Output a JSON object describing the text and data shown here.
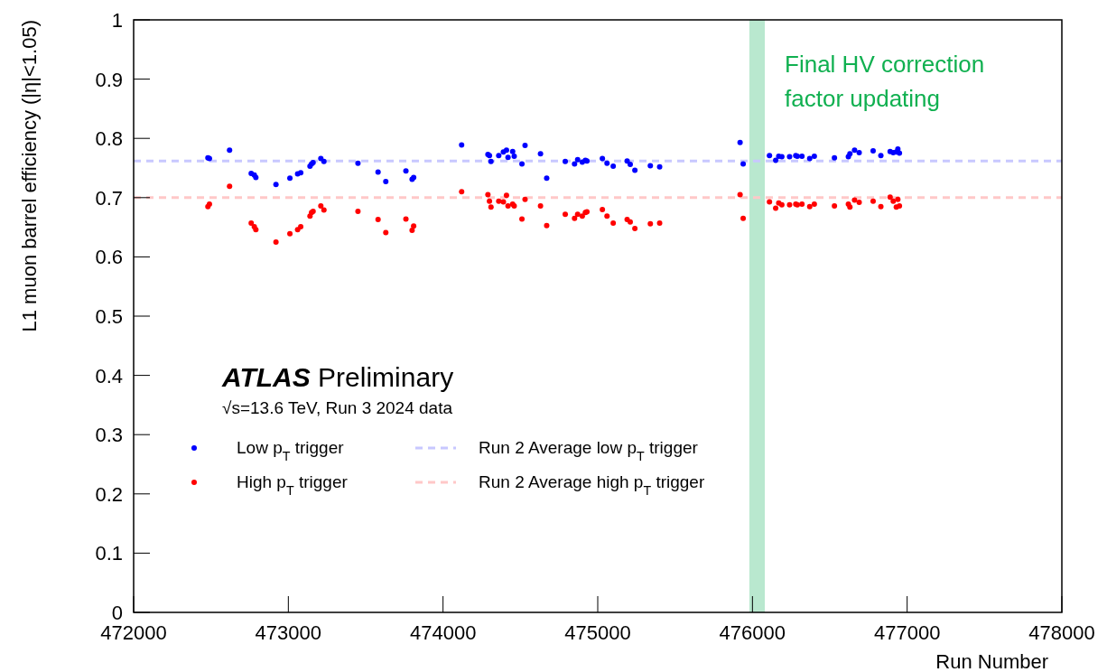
{
  "chart_data": {
    "type": "scatter",
    "xlabel": "Run Number",
    "ylabel": "L1 muon barrel efficiency (|η|<1.05)",
    "x": [
      472480,
      472490,
      472620,
      472760,
      472780,
      472790,
      472920,
      473010,
      473060,
      473080,
      473140,
      473150,
      473160,
      473210,
      473230,
      473450,
      473580,
      473630,
      473760,
      473800,
      473810,
      474120,
      474290,
      474300,
      474310,
      474360,
      474390,
      474410,
      474420,
      474450,
      474460,
      474510,
      474530,
      474630,
      474670,
      474790,
      474850,
      474870,
      474900,
      474920,
      474930,
      475030,
      475060,
      475100,
      475190,
      475210,
      475240,
      475340,
      475400,
      475920,
      475940,
      476110,
      476150,
      476170,
      476190,
      476240,
      476280,
      476290,
      476320,
      476370,
      476400,
      476530,
      476620,
      476630,
      476660,
      476690,
      476780,
      476830,
      476890,
      476910,
      476930,
      476940,
      476950
    ],
    "series": [
      {
        "name": "Low p$_{T}$ trigger",
        "color": "#0000ff",
        "values": [
          0.767,
          0.766,
          0.78,
          0.741,
          0.738,
          0.734,
          0.722,
          0.733,
          0.74,
          0.742,
          0.753,
          0.757,
          0.759,
          0.766,
          0.761,
          0.758,
          0.743,
          0.727,
          0.745,
          0.731,
          0.734,
          0.789,
          0.773,
          0.771,
          0.761,
          0.771,
          0.777,
          0.78,
          0.768,
          0.778,
          0.77,
          0.757,
          0.788,
          0.774,
          0.733,
          0.761,
          0.757,
          0.764,
          0.76,
          0.763,
          0.762,
          0.766,
          0.758,
          0.753,
          0.762,
          0.756,
          0.746,
          0.754,
          0.752,
          0.793,
          0.757,
          0.771,
          0.763,
          0.77,
          0.769,
          0.769,
          0.771,
          0.77,
          0.77,
          0.766,
          0.77,
          0.767,
          0.769,
          0.774,
          0.78,
          0.776,
          0.779,
          0.771,
          0.778,
          0.776,
          0.777,
          0.782,
          0.775
        ]
      },
      {
        "name": "High p$_{T}$ trigger",
        "color": "#ff0000",
        "values": [
          0.685,
          0.689,
          0.719,
          0.657,
          0.651,
          0.646,
          0.625,
          0.639,
          0.646,
          0.651,
          0.669,
          0.675,
          0.677,
          0.686,
          0.679,
          0.677,
          0.663,
          0.641,
          0.664,
          0.645,
          0.652,
          0.71,
          0.705,
          0.694,
          0.684,
          0.694,
          0.693,
          0.704,
          0.686,
          0.689,
          0.686,
          0.664,
          0.697,
          0.686,
          0.653,
          0.672,
          0.665,
          0.672,
          0.669,
          0.675,
          0.676,
          0.68,
          0.669,
          0.657,
          0.663,
          0.659,
          0.648,
          0.656,
          0.657,
          0.705,
          0.665,
          0.693,
          0.682,
          0.691,
          0.688,
          0.688,
          0.689,
          0.688,
          0.689,
          0.685,
          0.689,
          0.686,
          0.689,
          0.684,
          0.696,
          0.692,
          0.694,
          0.685,
          0.701,
          0.694,
          0.684,
          0.697,
          0.686
        ]
      }
    ],
    "xlim": [
      472000,
      478000
    ],
    "xticks": [
      472000,
      473000,
      474000,
      475000,
      476000,
      477000,
      478000
    ],
    "ylim": [
      0,
      1
    ],
    "yticks": [
      0,
      0.1,
      0.2,
      0.3,
      0.4,
      0.5,
      0.6,
      0.7,
      0.8,
      0.9,
      1
    ],
    "ref_lines": [
      {
        "axis": "y",
        "value": 0.762,
        "label": "Run 2 Average low p$_{T}$ trigger",
        "color": "#c8c8ff",
        "line_style": "dashed"
      },
      {
        "axis": "y",
        "value": 0.7,
        "label": "Run 2 Average high p$_{T}$ trigger",
        "color": "#ffc8c8",
        "line_style": "dashed"
      }
    ],
    "bands": [
      {
        "axis": "x",
        "from": 475980,
        "to": 476080,
        "label": "Final HV correction factor updating",
        "color": "#b9e8cf"
      }
    ],
    "annotations": [
      "ATLAS Preliminary",
      "√s=13.6 TeV, Run 3 2024 data"
    ],
    "marker": "circle",
    "grid": false,
    "legend": "bottom left"
  }
}
